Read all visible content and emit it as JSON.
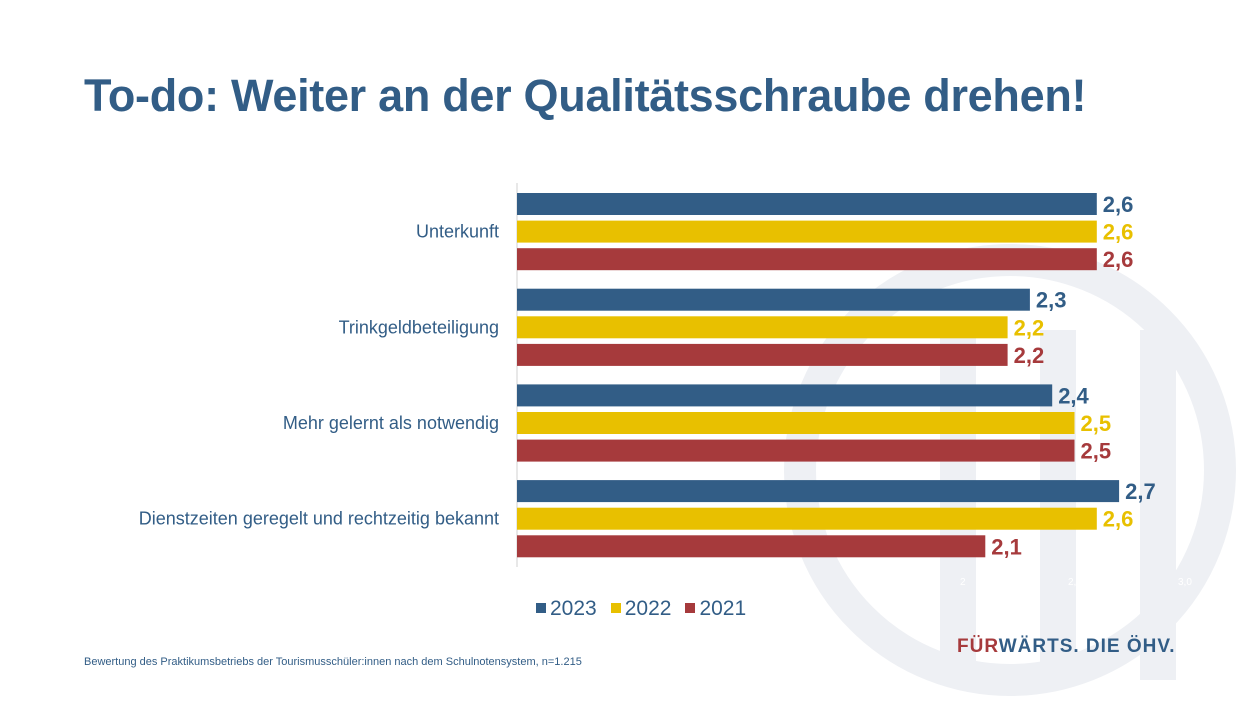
{
  "title": "To-do: Weiter an der Qualitätsschraube drehen!",
  "colors": {
    "2023": "#325d86",
    "2022": "#e8c000",
    "2021": "#a63a3c",
    "title": "#325d86"
  },
  "chart_data": {
    "type": "bar",
    "orientation": "horizontal",
    "categories": [
      "Unterkunft",
      "Trinkgeldbeteiligung",
      "Mehr gelernt als notwendig",
      "Dienstzeiten geregelt und rechtzeitig bekannt"
    ],
    "series": [
      {
        "name": "2023",
        "values": [
          2.6,
          2.3,
          2.4,
          2.7
        ],
        "labels": [
          "2,6",
          "2,3",
          "2,4",
          "2,7"
        ]
      },
      {
        "name": "2022",
        "values": [
          2.6,
          2.2,
          2.5,
          2.6
        ],
        "labels": [
          "2,6",
          "2,2",
          "2,5",
          "2,6"
        ]
      },
      {
        "name": "2021",
        "values": [
          2.6,
          2.2,
          2.5,
          2.1
        ],
        "labels": [
          "2,6",
          "2,2",
          "2,5",
          "2,1"
        ]
      }
    ],
    "tick_labels": [
      "2",
      "2,5",
      "3,0"
    ],
    "xlim": [
      0,
      3
    ],
    "grid": false,
    "legend": "bottom"
  },
  "legend": [
    "2023",
    "2022",
    "2021"
  ],
  "footnote": "Bewertung des Praktikumsbetriebs der Tourismusschüler:innen nach dem Schulnotensystem, n=1.215",
  "brand": {
    "red": "FÜR",
    "blue": "WÄRTS. DIE ÖHV."
  }
}
